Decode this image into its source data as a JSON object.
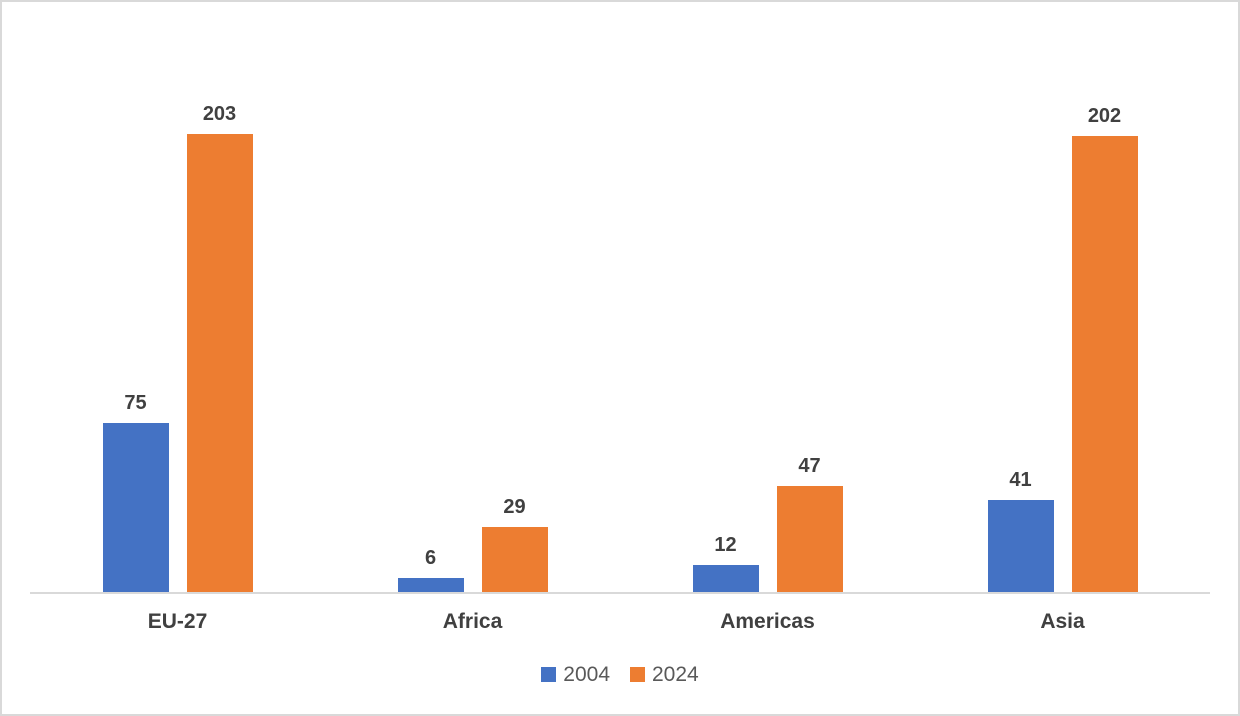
{
  "chart_data": {
    "type": "bar",
    "title": "",
    "xlabel": "",
    "ylabel": "",
    "categories": [
      "EU-27",
      "Africa",
      "Americas",
      "Asia"
    ],
    "series": [
      {
        "name": "2004",
        "color": "#4472C4",
        "values": [
          75,
          6,
          12,
          41
        ]
      },
      {
        "name": "2024",
        "color": "#ED7D31",
        "values": [
          203,
          29,
          47,
          202
        ]
      }
    ],
    "ylim": [
      0,
      203
    ],
    "grid": false,
    "data_labels": true,
    "legend_position": "bottom",
    "axis_line_color": "#D9D9D9",
    "label_color": "#404040",
    "legend_text_color": "#595959"
  }
}
